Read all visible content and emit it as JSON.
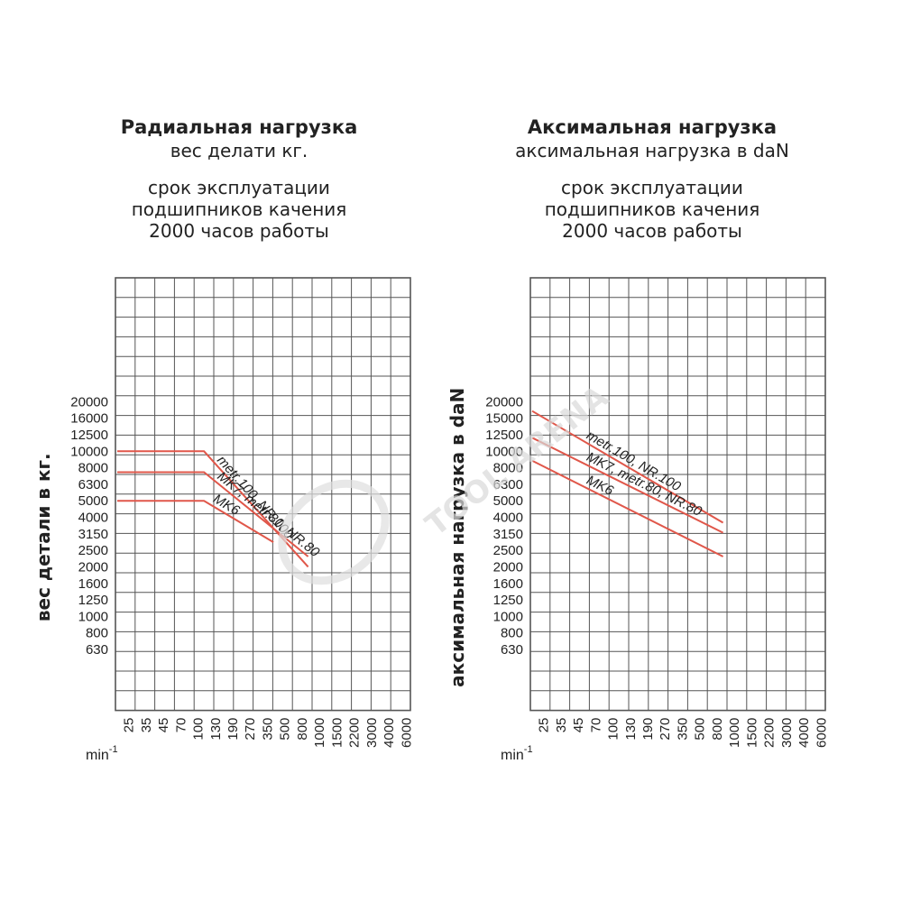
{
  "chart_data": [
    {
      "type": "line",
      "title": "Радиальная нагрузка",
      "subtitle": "вес делати кг.",
      "lifetime_lines": [
        "срок эксплуатации",
        "подшипников качения",
        "2000 часов работы"
      ],
      "ylabel": "вес детали в кг.",
      "xlabel": "min",
      "xlabel_exp": "-1",
      "y_ticks": [
        "20000",
        "16000",
        "12500",
        "10000",
        "8000",
        "6300",
        "5000",
        "4000",
        "3150",
        "2500",
        "2000",
        "1600",
        "1250",
        "1000",
        "800",
        "630"
      ],
      "x_ticks": [
        "25",
        "35",
        "45",
        "70",
        "100",
        "130",
        "190",
        "270",
        "350",
        "500",
        "800",
        "1000",
        "1500",
        "2200",
        "3000",
        "4000",
        "6000"
      ],
      "grid": true,
      "series": [
        {
          "name": "metr.100, NR.100",
          "points": [
            [
              "25",
              10000
            ],
            [
              "130",
              10000
            ],
            [
              "1000",
              2000
            ]
          ]
        },
        {
          "name": "MK7, metr.80, NR.80",
          "points": [
            [
              "25",
              7500
            ],
            [
              "130",
              7500
            ],
            [
              "1000",
              2300
            ]
          ]
        },
        {
          "name": "MK6",
          "points": [
            [
              "25",
              5000
            ],
            [
              "130",
              5000
            ],
            [
              "500",
              2800
            ]
          ]
        }
      ],
      "series_labels": [
        "metr.100, NR.100",
        "MK7, metr.80, NR.80",
        "MK6"
      ]
    },
    {
      "type": "line",
      "title": "Аксимальная нагрузка",
      "subtitle": "аксимальная нагрузка в daN",
      "lifetime_lines": [
        "срок эксплуатации",
        "подшипников качения",
        "2000 часов работы"
      ],
      "ylabel": "аксимальная нагрузка в daN",
      "xlabel": "min",
      "xlabel_exp": "-1",
      "y_ticks": [
        "20000",
        "15000",
        "12500",
        "10000",
        "8000",
        "6300",
        "5000",
        "4000",
        "3150",
        "2500",
        "2000",
        "1600",
        "1250",
        "1000",
        "800",
        "630"
      ],
      "x_ticks": [
        "25",
        "35",
        "45",
        "70",
        "100",
        "130",
        "190",
        "270",
        "350",
        "500",
        "800",
        "1000",
        "1500",
        "2200",
        "3000",
        "4000",
        "6000"
      ],
      "grid": true,
      "series": [
        {
          "name": "metr.100, NR.100",
          "points": [
            [
              "25",
              17000
            ],
            [
              "1000",
              3700
            ]
          ]
        },
        {
          "name": "MK7, metr.80, NR.80",
          "points": [
            [
              "25",
              12000
            ],
            [
              "1000",
              3200
            ]
          ]
        },
        {
          "name": "MK6",
          "points": [
            [
              "25",
              8800
            ],
            [
              "1000",
              2300
            ]
          ]
        }
      ],
      "series_labels": [
        "metr.100, NR.100",
        "MK7, metr.80, NR.80",
        "MK6"
      ]
    }
  ],
  "colors": {
    "grid": "#555555",
    "series": "#e0574a",
    "text": "#222222"
  },
  "watermark": "TOOL ARENA"
}
